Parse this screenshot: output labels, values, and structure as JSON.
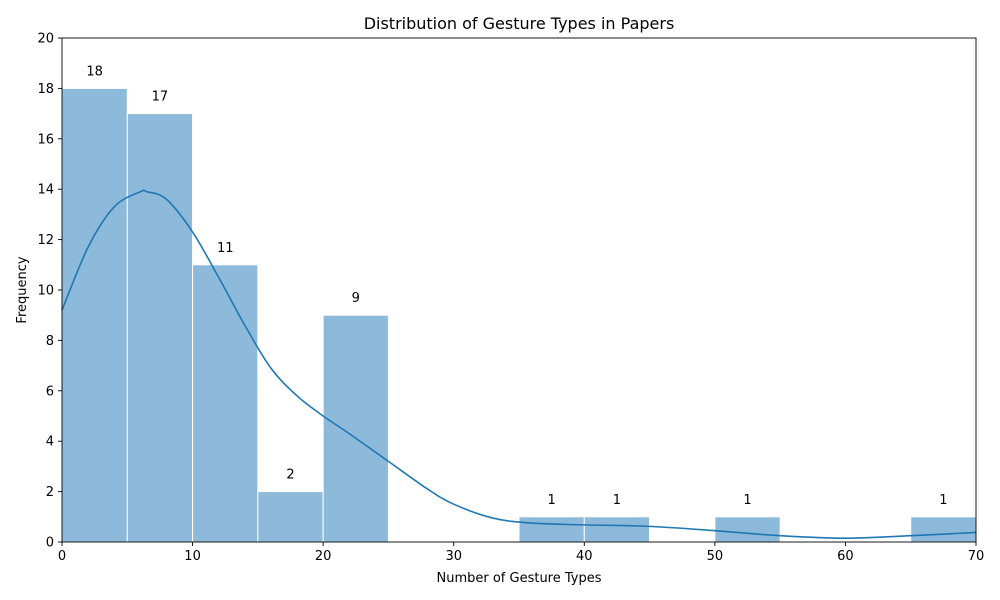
{
  "chart_data": {
    "type": "bar",
    "title": "Distribution of Gesture Types in Papers",
    "xlabel": "Number of Gesture Types",
    "ylabel": "Frequency",
    "xlim": [
      0,
      70
    ],
    "ylim": [
      0,
      20
    ],
    "xticks": [
      0,
      10,
      20,
      30,
      40,
      50,
      60,
      70
    ],
    "yticks": [
      0,
      2,
      4,
      6,
      8,
      10,
      12,
      14,
      16,
      18,
      20
    ],
    "bin_width": 5,
    "bins": [
      {
        "start": 0,
        "end": 5,
        "count": 18
      },
      {
        "start": 5,
        "end": 10,
        "count": 17
      },
      {
        "start": 10,
        "end": 15,
        "count": 11
      },
      {
        "start": 15,
        "end": 20,
        "count": 2
      },
      {
        "start": 20,
        "end": 25,
        "count": 9
      },
      {
        "start": 35,
        "end": 40,
        "count": 1
      },
      {
        "start": 40,
        "end": 45,
        "count": 1
      },
      {
        "start": 50,
        "end": 55,
        "count": 1
      },
      {
        "start": 65,
        "end": 70,
        "count": 1
      }
    ],
    "kde": {
      "x": [
        0,
        2,
        4,
        6,
        6.5,
        8,
        10,
        12,
        14,
        16,
        18,
        20,
        22,
        25,
        28,
        30,
        33,
        36,
        40,
        45,
        50,
        55,
        60,
        65,
        70
      ],
      "y": [
        9.2,
        11.7,
        13.3,
        13.9,
        13.9,
        13.6,
        12.3,
        10.5,
        8.6,
        6.9,
        5.8,
        5.0,
        4.3,
        3.2,
        2.1,
        1.5,
        0.95,
        0.75,
        0.68,
        0.62,
        0.45,
        0.25,
        0.15,
        0.25,
        0.38
      ]
    },
    "grid": false,
    "bar_color": "#8db9da",
    "line_color": "#1f77b4"
  }
}
